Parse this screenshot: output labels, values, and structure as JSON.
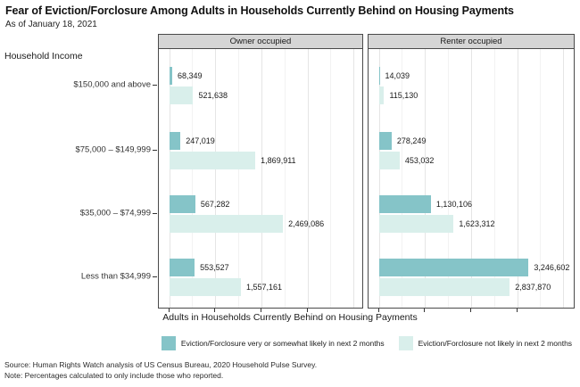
{
  "title": "Fear of Eviction/Forclosure Among Adults in Households Currently Behind on Housing Payments",
  "subtitle": "As of January 18, 2021",
  "y_axis_title": "Household Income",
  "x_axis_title": "Adults in Households Currently Behind on Housing Payments",
  "source": "Source: Human Rights Watch analysis of US Census Bureau, 2020 Household Pulse Survey.",
  "note": "Note: Percentages calculated to only include those who reported.",
  "colors": {
    "likely": "#85c4c8",
    "not_likely": "#d9efeb",
    "panel_header_bg": "#d5d5d5",
    "panel_border": "#4a4a4a",
    "grid_major": "#e5e5e5",
    "grid_minor": "#f2f2f2",
    "tick": "#333333"
  },
  "legend": [
    {
      "key": "likely",
      "label": "Eviction/Forclosure very or somewhat likely in next 2 months"
    },
    {
      "key": "not_likely",
      "label": "Eviction/Forclosure not likely in next 2 months"
    }
  ],
  "chart_data": {
    "type": "bar",
    "orientation": "horizontal",
    "grid": true,
    "legend_position": "bottom",
    "xlabel": "Adults in Households Currently Behind on Housing Payments",
    "ylabel": "Household Income",
    "xlim": [
      0,
      4300000
    ],
    "x_major_step": 1000000,
    "x_minor_step": 500000,
    "x_tick_labels_shown": false,
    "categories": [
      "$150,000 and above",
      "$75,000 – $149,999",
      "$35,000 – $74,999",
      "Less than $34,999"
    ],
    "facets": [
      {
        "label": "Owner occupied",
        "series": [
          {
            "key": "likely",
            "name": "Eviction/Forclosure very or somewhat likely in next 2 months",
            "values": [
              68349,
              247019,
              567282,
              553527
            ],
            "labels": [
              "68,349",
              "247,019",
              "567,282",
              "553,527"
            ]
          },
          {
            "key": "not_likely",
            "name": "Eviction/Forclosure not likely in next 2 months",
            "values": [
              521638,
              1869911,
              2469086,
              1557161
            ],
            "labels": [
              "521,638",
              "1,869,911",
              "2,469,086",
              "1,557,161"
            ]
          }
        ]
      },
      {
        "label": "Renter occupied",
        "series": [
          {
            "key": "likely",
            "name": "Eviction/Forclosure very or somewhat likely in next 2 months",
            "values": [
              14039,
              278249,
              1130106,
              3246602
            ],
            "labels": [
              "14,039",
              "278,249",
              "1,130,106",
              "3,246,602"
            ]
          },
          {
            "key": "not_likely",
            "name": "Eviction/Forclosure not likely in next 2 months",
            "values": [
              115130,
              453032,
              1623312,
              2837870
            ],
            "labels": [
              "115,130",
              "453,032",
              "1,623,312",
              "2,837,870"
            ]
          }
        ]
      }
    ]
  }
}
